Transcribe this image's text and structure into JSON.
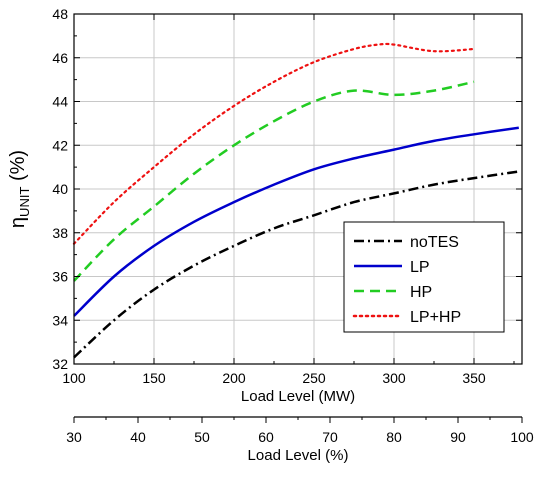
{
  "chart_data": {
    "type": "line",
    "xlabel": "Load Level (MW)",
    "ylabel": "η",
    "ylabel_sub": "UNIT",
    "ylabel_unit": " (%)",
    "xlim": [
      100,
      380
    ],
    "ylim": [
      32,
      48
    ],
    "x_ticks": [
      100,
      150,
      200,
      250,
      300,
      350
    ],
    "y_ticks": [
      32,
      34,
      36,
      38,
      40,
      42,
      44,
      46,
      48
    ],
    "grid": true,
    "legend_position": "bottom-right",
    "secondary_x_axis": {
      "label": "Load Level (%)",
      "lim": [
        30,
        100
      ],
      "ticks": [
        30,
        40,
        50,
        60,
        70,
        80,
        90,
        100
      ]
    },
    "series": [
      {
        "name": "noTES",
        "color": "#000000",
        "dash": "dashdot",
        "x": [
          100,
          125,
          150,
          175,
          200,
          225,
          250,
          275,
          300,
          325,
          350,
          378
        ],
        "values": [
          32.3,
          34.0,
          35.4,
          36.5,
          37.4,
          38.2,
          38.8,
          39.4,
          39.8,
          40.2,
          40.5,
          40.8
        ]
      },
      {
        "name": "LP",
        "color": "#0000cc",
        "dash": "solid",
        "x": [
          100,
          125,
          150,
          175,
          200,
          225,
          250,
          275,
          300,
          325,
          350,
          378
        ],
        "values": [
          34.2,
          36.0,
          37.4,
          38.5,
          39.4,
          40.2,
          40.9,
          41.4,
          41.8,
          42.2,
          42.5,
          42.8
        ]
      },
      {
        "name": "HP",
        "color": "#22cc22",
        "dash": "dashed",
        "x": [
          100,
          125,
          150,
          175,
          200,
          225,
          250,
          275,
          300,
          325,
          350
        ],
        "values": [
          35.8,
          37.7,
          39.2,
          40.7,
          42.0,
          43.1,
          44.0,
          44.5,
          44.3,
          44.5,
          44.9
        ]
      },
      {
        "name": "LP+HP",
        "color": "#ee1111",
        "dash": "dotted",
        "x": [
          100,
          125,
          150,
          175,
          200,
          225,
          250,
          275,
          290,
          300,
          325,
          350
        ],
        "values": [
          37.5,
          39.4,
          41.0,
          42.5,
          43.8,
          44.9,
          45.8,
          46.4,
          46.6,
          46.6,
          46.3,
          46.4
        ]
      }
    ]
  }
}
